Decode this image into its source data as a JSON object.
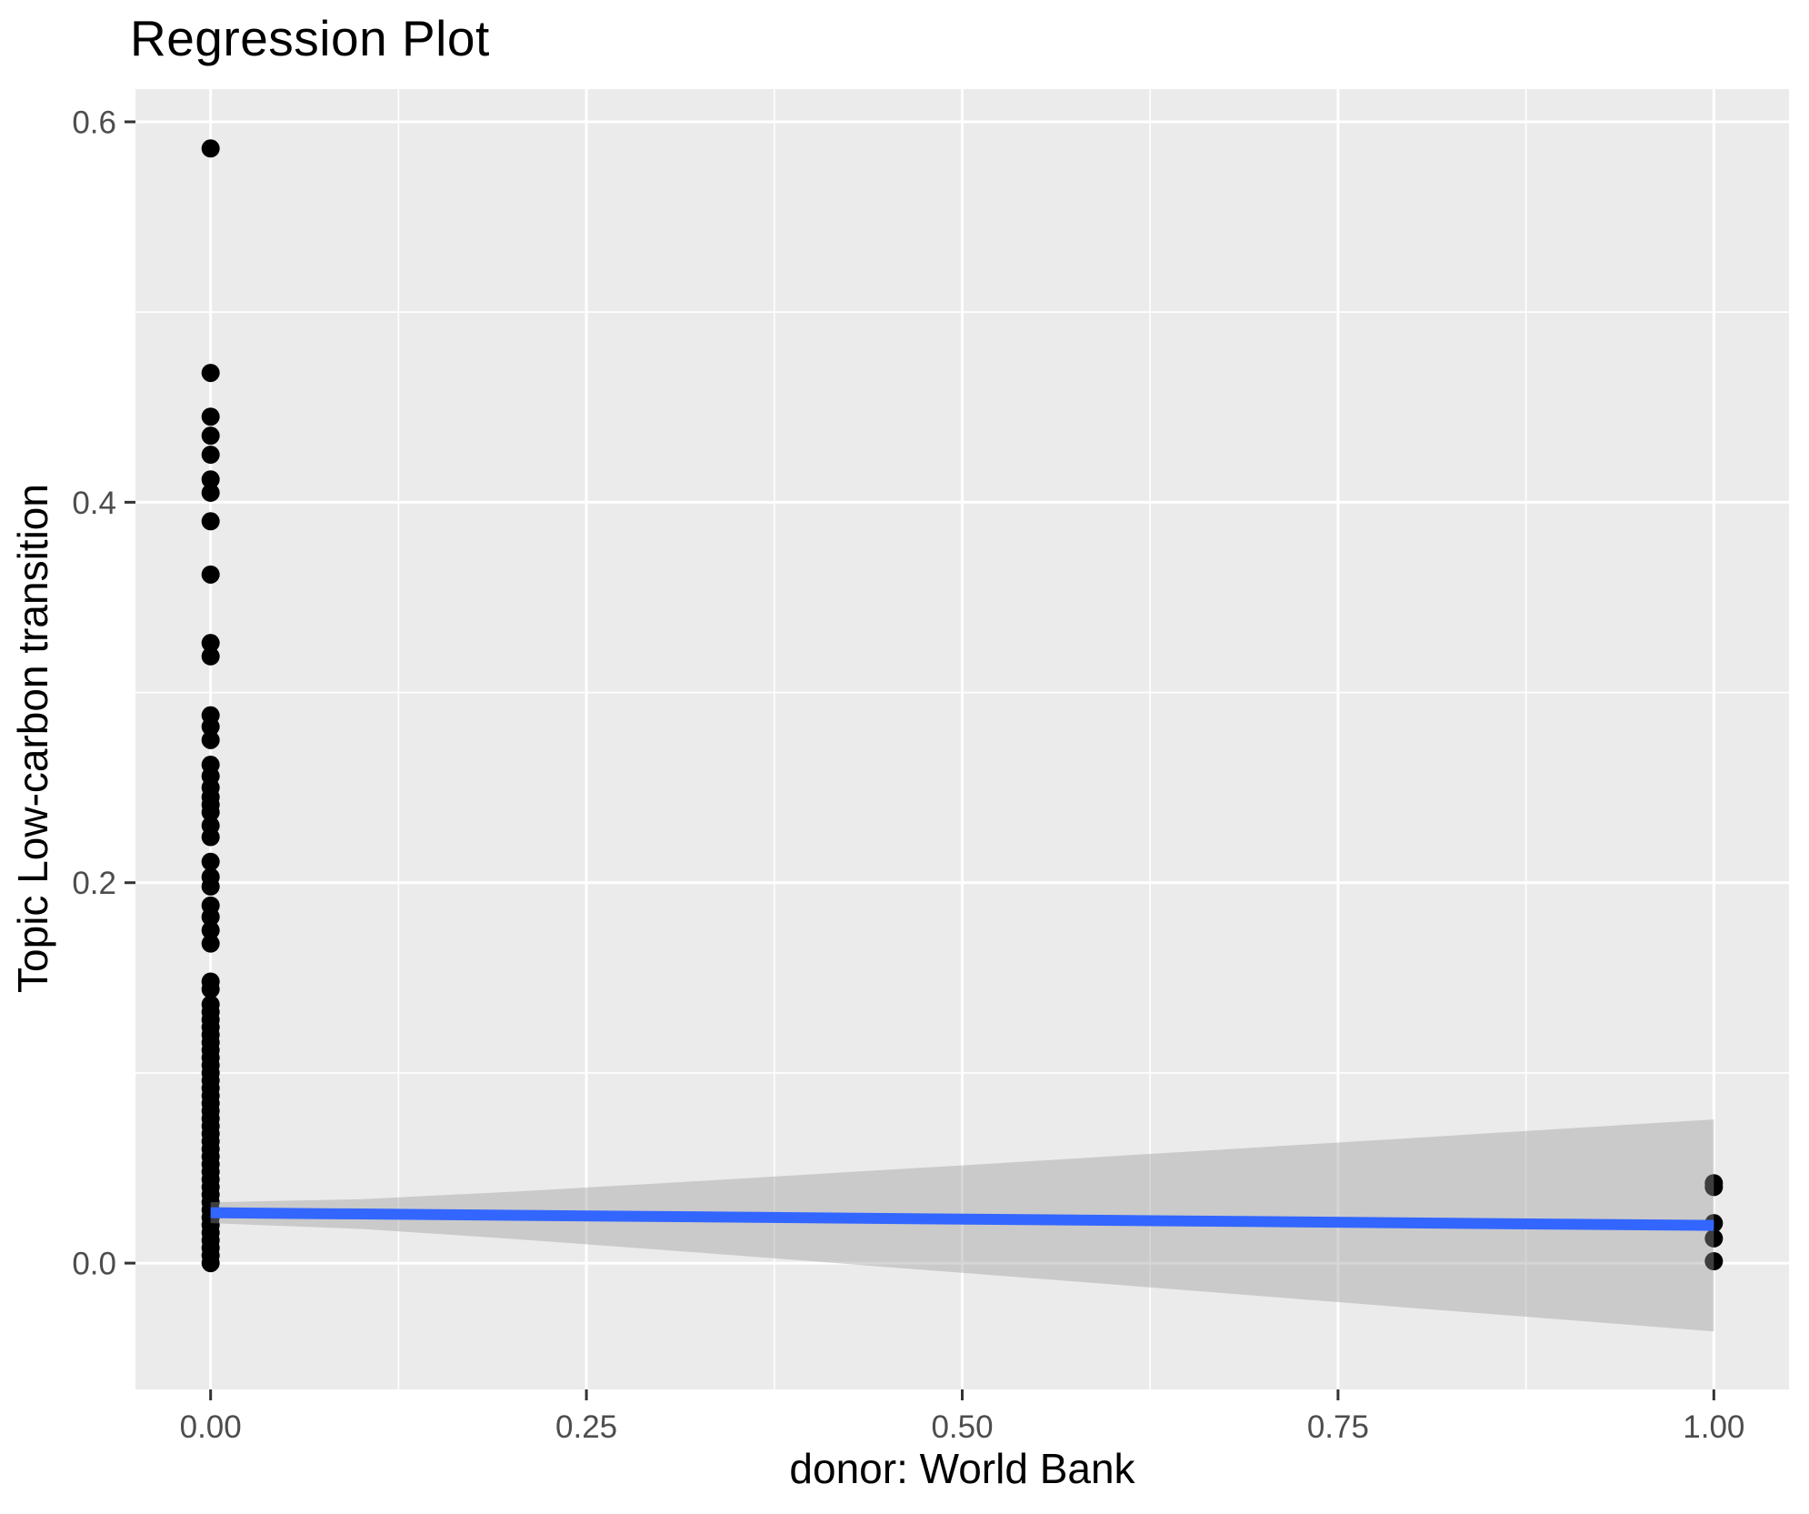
{
  "chart_data": {
    "type": "scatter",
    "title": "Regression Plot",
    "xlabel": "donor: World Bank",
    "ylabel": "Topic Low-carbon transition",
    "xlim": [
      -0.05,
      1.05
    ],
    "ylim": [
      -0.0664,
      0.6172
    ],
    "x_major_ticks": [
      0.0,
      0.25,
      0.5,
      0.75,
      1.0
    ],
    "x_tick_labels": [
      "0.00",
      "0.25",
      "0.50",
      "0.75",
      "1.00"
    ],
    "x_minor_gridlines": [
      0.125,
      0.375,
      0.625,
      0.875
    ],
    "y_major_ticks": [
      0.0,
      0.2,
      0.4,
      0.6
    ],
    "y_tick_labels": [
      "0.0",
      "0.2",
      "0.4",
      "0.6"
    ],
    "y_minor_gridlines": [
      0.1,
      0.3,
      0.5
    ],
    "grid": "on",
    "legend": "none",
    "points_x0": [
      0.586,
      0.468,
      0.445,
      0.435,
      0.425,
      0.412,
      0.405,
      0.39,
      0.362,
      0.326,
      0.319,
      0.288,
      0.282,
      0.275,
      0.262,
      0.256,
      0.25,
      0.245,
      0.241,
      0.237,
      0.23,
      0.224,
      0.211,
      0.203,
      0.198,
      0.188,
      0.182,
      0.175,
      0.168,
      0.148,
      0.144,
      0.136,
      0.132,
      0.128,
      0.124,
      0.12,
      0.116,
      0.112,
      0.108,
      0.104,
      0.1,
      0.096,
      0.092,
      0.088,
      0.084,
      0.08,
      0.076,
      0.072,
      0.068,
      0.064,
      0.06,
      0.056,
      0.052,
      0.048,
      0.044,
      0.04,
      0.036,
      0.032,
      0.028,
      0.024,
      0.02,
      0.016,
      0.012,
      0.008,
      0.004,
      0.0
    ],
    "points_x1": [
      0.042,
      0.04,
      0.021,
      0.013,
      0.001
    ],
    "regression_line": {
      "x": [
        0.0,
        1.0
      ],
      "y": [
        0.0265,
        0.0198
      ]
    },
    "ci_band": {
      "x": [
        0.0,
        0.1,
        0.2,
        0.3,
        0.4,
        0.5,
        0.6,
        0.7,
        0.8,
        0.9,
        1.0
      ],
      "upper": [
        0.032,
        0.0336,
        0.0375,
        0.042,
        0.0467,
        0.0514,
        0.0562,
        0.061,
        0.0658,
        0.0707,
        0.0755
      ],
      "lower": [
        0.021,
        0.018,
        0.0128,
        0.007,
        0.001,
        -0.0051,
        -0.0112,
        -0.0174,
        -0.0236,
        -0.0297,
        -0.0359
      ]
    },
    "style": {
      "panel_bg": "#EBEBEB",
      "gridline_color": "#FFFFFF",
      "point_color": "#000000",
      "point_radius": 10,
      "line_color": "#3366FF",
      "line_width": 12,
      "band_fill_rgba": "rgba(153,153,153,0.4)",
      "tick_mark_color": "#333333",
      "tick_label_color": "#4D4D4D",
      "tick_label_size": 35,
      "major_grid_width": 3,
      "minor_grid_width": 1.6
    }
  }
}
